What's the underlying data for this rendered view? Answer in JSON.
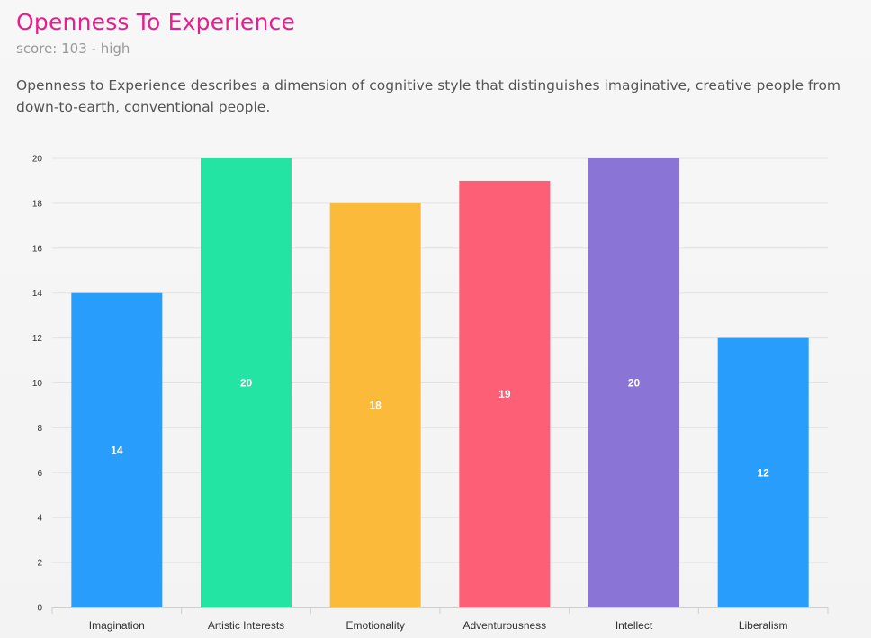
{
  "header": {
    "title": "Openness To Experience",
    "subtitle": "score: 103 - high",
    "description": "Openness to Experience describes a dimension of cognitive style that distinguishes imaginative, creative people from down-to-earth, conventional people."
  },
  "chart_data": {
    "type": "bar",
    "categories": [
      "Imagination",
      "Artistic Interests",
      "Emotionality",
      "Adventurousness",
      "Intellect",
      "Liberalism"
    ],
    "values": [
      14,
      20,
      18,
      19,
      20,
      12
    ],
    "colors": [
      "#289dfc",
      "#23e4a3",
      "#fcba3a",
      "#fd5f76",
      "#8a75d6",
      "#289dfc"
    ],
    "ylim": [
      0,
      20
    ],
    "yticks": [
      0,
      2,
      4,
      6,
      8,
      10,
      12,
      14,
      16,
      18,
      20
    ],
    "grid": true,
    "title": "",
    "xlabel": "",
    "ylabel": ""
  }
}
